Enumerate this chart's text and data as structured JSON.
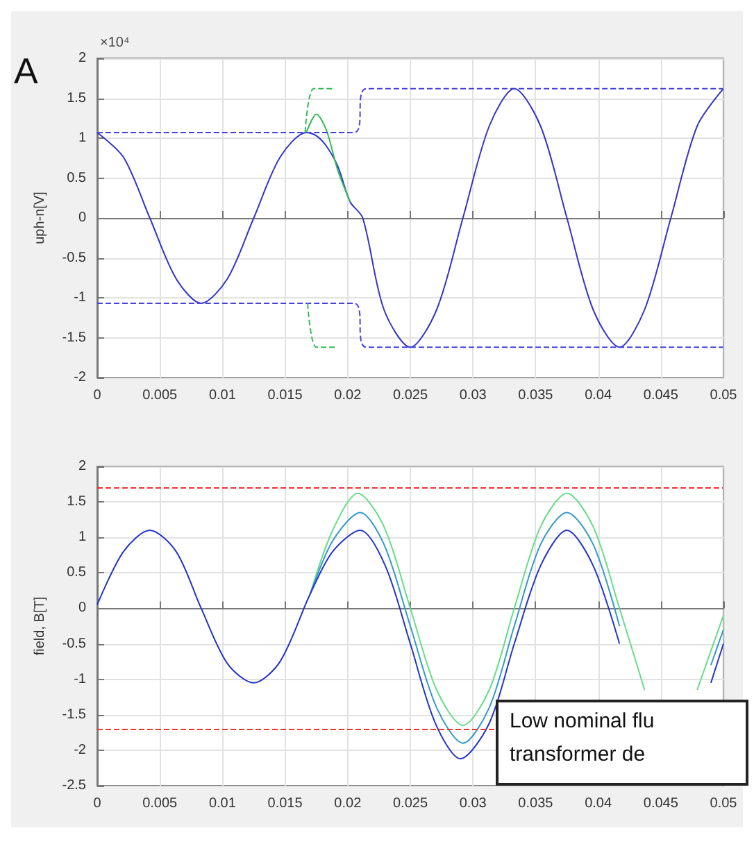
{
  "chart_data": [
    {
      "type": "line",
      "ylabel": "uph-n[V]",
      "annotations": [
        "×10⁴",
        "A"
      ],
      "xlim": [
        0,
        0.05
      ],
      "xticks": [
        0,
        0.005,
        0.01,
        0.015,
        0.02,
        0.025,
        0.03,
        0.035,
        0.04,
        0.045,
        0.05
      ],
      "ylim": [
        -2,
        2
      ],
      "yticks": [
        -2,
        -1.5,
        -1,
        -0.5,
        0,
        0.5,
        1,
        1.5,
        2
      ],
      "grid": true,
      "marker": "none",
      "legend": false,
      "series": [
        {
          "color": "#3333cc",
          "line_style": "solid",
          "x": [
            0,
            0.0021,
            0.0042,
            0.0063,
            0.0083,
            0.0104,
            0.0125,
            0.0146,
            0.0167,
            0.0175,
            0.0183,
            0.0192,
            0.0202,
            0.0212,
            0.0229,
            0.025,
            0.0271,
            0.0292,
            0.0313,
            0.0333,
            0.0354,
            0.0375,
            0.0396,
            0.0417,
            0.0437,
            0.0458,
            0.0479,
            0.05
          ],
          "values": [
            1.07,
            0.76,
            0,
            -0.76,
            -1.07,
            -0.76,
            0,
            0.76,
            1.07,
            1.03,
            0.9,
            0.65,
            0.2,
            0,
            -1.15,
            -1.62,
            -1.15,
            0,
            1.15,
            1.62,
            1.15,
            0,
            -1.15,
            -1.62,
            -1.15,
            0,
            1.15,
            1.62
          ]
        },
        {
          "color": "#33bb55",
          "line_style": "solid",
          "x": [
            0.0167,
            0.0175,
            0.0183,
            0.0192,
            0.0202
          ],
          "values": [
            1.07,
            1.3,
            1.1,
            0.6,
            0.2
          ]
        },
        {
          "color": "#4444dd",
          "line_style": "dashed",
          "x": [
            0,
            0.0205,
            0.0215,
            0.05
          ],
          "values": [
            1.07,
            1.07,
            1.62,
            1.62
          ]
        },
        {
          "color": "#4444dd",
          "line_style": "dashed",
          "x": [
            0,
            0.0205,
            0.0215,
            0.05
          ],
          "values": [
            -1.07,
            -1.07,
            -1.62,
            -1.62
          ]
        },
        {
          "color": "#33bb55",
          "line_style": "dashed",
          "x": [
            0.0166,
            0.0173,
            0.019
          ],
          "values": [
            1.07,
            1.62,
            1.62
          ]
        },
        {
          "color": "#33bb55",
          "line_style": "dashed",
          "x": [
            0.0168,
            0.0175,
            0.019
          ],
          "values": [
            -1.07,
            -1.62,
            -1.62
          ]
        }
      ]
    },
    {
      "type": "line",
      "ylabel": "field, B[T]",
      "annotations": [
        "Low nominal flu transformer de"
      ],
      "xlim": [
        0,
        0.05
      ],
      "xticks": [
        0,
        0.005,
        0.01,
        0.015,
        0.02,
        0.025,
        0.03,
        0.035,
        0.04,
        0.045,
        0.05
      ],
      "ylim": [
        -2.5,
        2
      ],
      "yticks": [
        -2.5,
        -2,
        -1.5,
        -1,
        -0.5,
        0,
        0.5,
        1,
        1.5,
        2
      ],
      "grid": true,
      "marker": "none",
      "legend": false,
      "ref_lines": [
        {
          "axis": "y",
          "value": 1.7,
          "color": "#ee3333",
          "line_style": "dashed"
        },
        {
          "axis": "y",
          "value": -1.7,
          "color": "#ee3333",
          "line_style": "dashed"
        }
      ],
      "series": [
        {
          "color": "#66dd88",
          "line_style": "solid",
          "x": [
            0.017,
            0.0188,
            0.0208,
            0.0229,
            0.025,
            0.0271,
            0.0292,
            0.0313,
            0.0333,
            0.0354,
            0.0375,
            0.0396,
            0.0417,
            0.0437,
            0.0458,
            0.0479,
            0.05
          ],
          "values": [
            0.2,
            1.1,
            1.62,
            1.15,
            0,
            -1.15,
            -1.65,
            -1.15,
            0,
            1.15,
            1.62,
            1.15,
            0,
            -1.15,
            null,
            -1.15,
            -0.1
          ]
        },
        {
          "color": "#3399cc",
          "line_style": "solid",
          "x": [
            0.017,
            0.0188,
            0.021,
            0.0229,
            0.025,
            0.0271,
            0.0292,
            0.0313,
            0.0333,
            0.0354,
            0.0375,
            0.0396,
            0.0417,
            0.0437,
            0.0458,
            0.049,
            0.05
          ],
          "values": [
            0.2,
            0.95,
            1.35,
            0.9,
            -0.25,
            -1.4,
            -1.9,
            -1.4,
            -0.25,
            0.9,
            1.35,
            0.9,
            -0.25,
            null,
            null,
            -0.8,
            -0.3
          ]
        },
        {
          "color": "#2233cc",
          "line_style": "solid",
          "x": [
            0,
            0.0021,
            0.0042,
            0.0063,
            0.0083,
            0.0104,
            0.0125,
            0.0146,
            0.017,
            0.0188,
            0.021,
            0.023,
            0.025,
            0.027,
            0.029,
            0.0313,
            0.0333,
            0.0354,
            0.0375,
            0.0396,
            0.0417,
            0.0437,
            0.0458,
            0.049,
            0.05
          ],
          "values": [
            0.05,
            0.8,
            1.1,
            0.8,
            0,
            -0.78,
            -1.05,
            -0.75,
            0.2,
            0.8,
            1.1,
            0.6,
            -0.5,
            -1.62,
            -2.12,
            -1.62,
            -0.5,
            0.6,
            1.1,
            0.6,
            -0.5,
            null,
            null,
            -1.05,
            -0.5
          ]
        }
      ]
    }
  ]
}
